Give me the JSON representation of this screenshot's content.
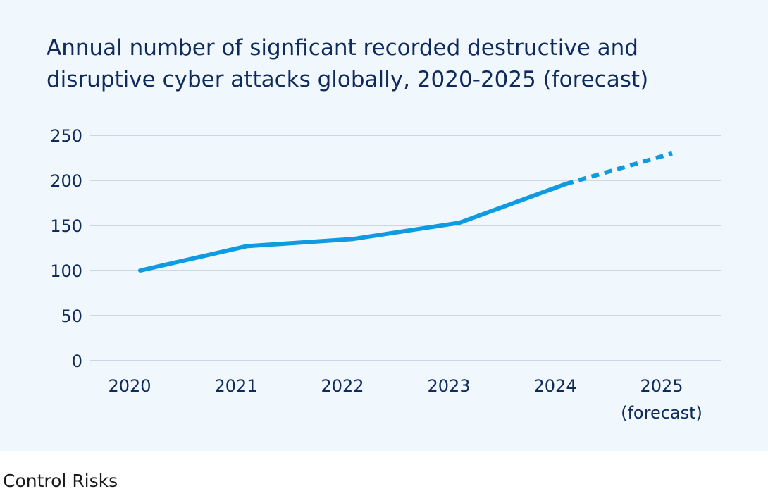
{
  "chart_data": {
    "type": "line",
    "title": "Annual number of signficant recorded destructive and\ndisruptive cyber attacks globally, 2020-2025 (forecast)",
    "xlabel": "",
    "ylabel": "",
    "categories": [
      "2020",
      "2021",
      "2022",
      "2023",
      "2024",
      "2025\n(forecast)"
    ],
    "series": [
      {
        "values": [
          100,
          127,
          135,
          153,
          196,
          230
        ],
        "forecast_from": "2024",
        "color": "#0e9be1"
      }
    ],
    "y_ticks": [
      "0",
      "50",
      "100",
      "150",
      "200",
      "250"
    ],
    "ylim": [
      0,
      250
    ],
    "grid": true,
    "legend": "none"
  },
  "source": "Control Risks",
  "colors": {
    "background": "#f0f7fd",
    "title": "#0f2a5c",
    "grid": "#c3ccd8",
    "line": "#0e9be1"
  }
}
